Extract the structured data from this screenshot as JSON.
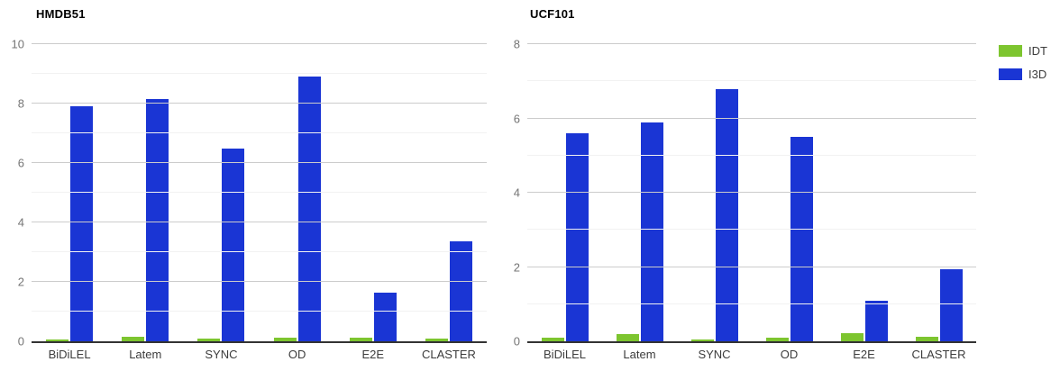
{
  "figure": {
    "background": "#ffffff"
  },
  "legend": {
    "items": [
      {
        "label": "IDT",
        "color": "#7dc52f"
      },
      {
        "label": "I3D",
        "color": "#1a35d4"
      }
    ]
  },
  "chart_data": [
    {
      "type": "bar",
      "title": "HMDB51",
      "categories": [
        "BiDiLEL",
        "Latem",
        "SYNC",
        "OD",
        "E2E",
        "CLASTER"
      ],
      "series": [
        {
          "name": "IDT",
          "color": "#7dc52f",
          "values": [
            0.07,
            0.15,
            0.1,
            0.12,
            0.12,
            0.1
          ]
        },
        {
          "name": "I3D",
          "color": "#1a35d4",
          "values": [
            7.9,
            8.15,
            6.5,
            8.9,
            1.65,
            3.35
          ]
        }
      ],
      "xlabel": "",
      "ylabel": "",
      "ylim": [
        0,
        10
      ],
      "y_ticks": [
        0,
        2,
        4,
        6,
        8,
        10
      ],
      "grid": "major-and-minor",
      "legend_position": "shared-right"
    },
    {
      "type": "bar",
      "title": "UCF101",
      "categories": [
        "BiDiLEL",
        "Latem",
        "SYNC",
        "OD",
        "E2E",
        "CLASTER"
      ],
      "series": [
        {
          "name": "IDT",
          "color": "#7dc52f",
          "values": [
            0.1,
            0.2,
            0.05,
            0.1,
            0.22,
            0.13
          ]
        },
        {
          "name": "I3D",
          "color": "#1a35d4",
          "values": [
            5.6,
            5.9,
            6.8,
            5.5,
            1.1,
            1.95
          ]
        }
      ],
      "xlabel": "",
      "ylabel": "",
      "ylim": [
        0,
        8
      ],
      "y_ticks": [
        0,
        2,
        4,
        6,
        8
      ],
      "grid": "major-and-minor",
      "legend_position": "shared-right"
    }
  ],
  "styles": {
    "bar_color_idt": "#7dc52f",
    "bar_color_i3d": "#1a35d4",
    "gridline_major": "#cccccc",
    "gridline_minor": "#f2f2f2",
    "axis_line": "#333333",
    "tick_label_color": "#757575",
    "category_label_color": "#3c3c3c",
    "title_color": "#000000"
  }
}
